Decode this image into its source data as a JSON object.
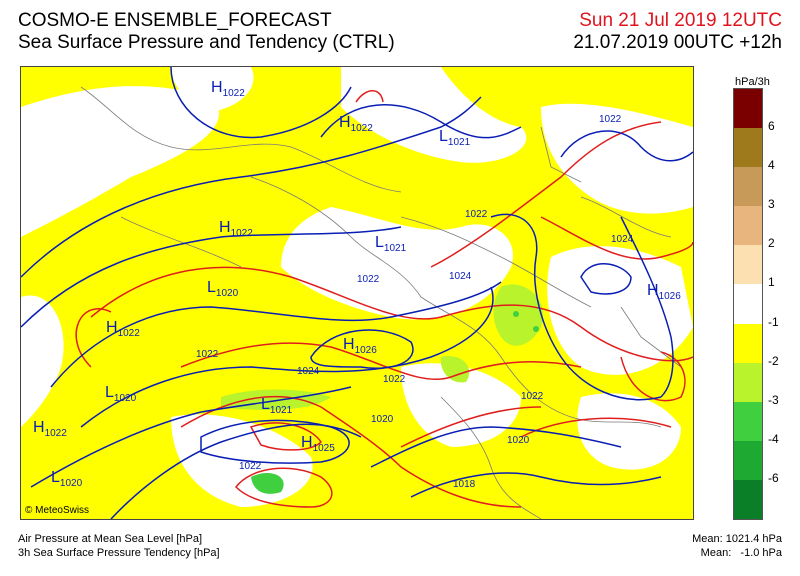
{
  "header": {
    "title": "COSMO-E ENSEMBLE_FORECAST",
    "subtitle": "Sea Surface Pressure and Tendency (CTRL)",
    "valid_date": "Sun 21 Jul 2019 12UTC",
    "run_info": "21.07.2019 00UTC +12h"
  },
  "legend": {
    "unit": "hPa/3h",
    "ticks": [
      "6",
      "4",
      "3",
      "2",
      "1",
      "-1",
      "-2",
      "-3",
      "-4",
      "-6"
    ],
    "colors": [
      "#7a0000",
      "#9e7a1c",
      "#c79a5a",
      "#e8b57f",
      "#fde0b2",
      "#ffffff",
      "#ffff00",
      "#b9f32b",
      "#3fcf3f",
      "#1eaa32",
      "#0a7f28"
    ]
  },
  "map": {
    "credit": "© MeteoSwiss",
    "colors": {
      "high_tendency": "#ffff00",
      "pressure_blue": "#0a1eb4",
      "pressure_red": "#e01e1e"
    },
    "highs": [
      {
        "letter": "H",
        "value": "1022"
      },
      {
        "letter": "H",
        "value": "1022"
      },
      {
        "letter": "H",
        "value": "1022"
      },
      {
        "letter": "H",
        "value": "1022"
      },
      {
        "letter": "H",
        "value": "1026"
      },
      {
        "letter": "H",
        "value": "1025"
      },
      {
        "letter": "H",
        "value": "1022"
      },
      {
        "letter": "H",
        "value": "1026"
      }
    ],
    "lows": [
      {
        "letter": "L",
        "value": "1021"
      },
      {
        "letter": "L",
        "value": "1021"
      },
      {
        "letter": "L",
        "value": "1020"
      },
      {
        "letter": "L",
        "value": "1020"
      },
      {
        "letter": "L",
        "value": "1021"
      },
      {
        "letter": "L",
        "value": "1020"
      }
    ],
    "isobar_labels": [
      "1022",
      "1022",
      "1022",
      "1024",
      "1024",
      "1022",
      "1024",
      "1022",
      "1020",
      "1020",
      "1018",
      "1022",
      "1022",
      "1024"
    ]
  },
  "footer": {
    "line1": "Air Pressure at Mean Sea Level [hPa]",
    "line2": "3h Sea Surface Pressure Tendency [hPa]",
    "mean_pressure": "Mean: 1021.4 hPa",
    "mean_tendency": "Mean:   -1.0 hPa"
  }
}
